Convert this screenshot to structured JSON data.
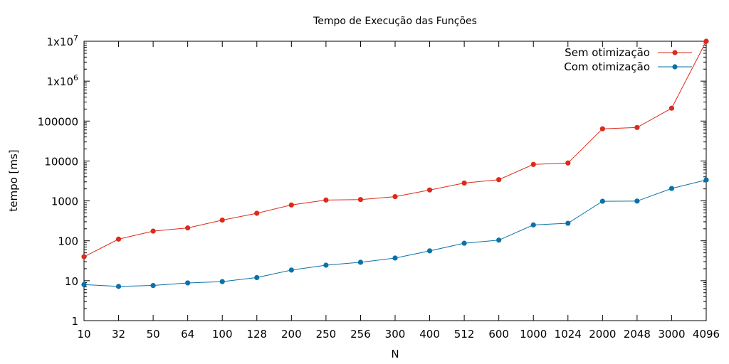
{
  "chart_data": {
    "type": "line",
    "title": "Tempo de Execução das Funções",
    "xlabel": "N",
    "ylabel": "tempo [ms]",
    "yscale": "log",
    "ylim": [
      1,
      10000000
    ],
    "categories": [
      "10",
      "32",
      "50",
      "64",
      "100",
      "128",
      "200",
      "250",
      "256",
      "300",
      "400",
      "512",
      "600",
      "1000",
      "1024",
      "2000",
      "2048",
      "3000",
      "4096"
    ],
    "y_ticks": [
      {
        "value": 1,
        "label": "1"
      },
      {
        "value": 10,
        "label": "10"
      },
      {
        "value": 100,
        "label": "100"
      },
      {
        "value": 1000,
        "label": "1000"
      },
      {
        "value": 10000,
        "label": "10000"
      },
      {
        "value": 100000,
        "label": "100000"
      },
      {
        "value": 1000000,
        "label": "1x10",
        "exp": "6"
      },
      {
        "value": 10000000,
        "label": "1x10",
        "exp": "7"
      }
    ],
    "legend_position": "top-right",
    "series": [
      {
        "name": "Sem otimização",
        "color": "#dd2a1b",
        "values": [
          40,
          110,
          175,
          210,
          330,
          490,
          790,
          1050,
          1080,
          1280,
          1880,
          2800,
          3400,
          8200,
          8900,
          64000,
          69000,
          210000,
          10000000
        ]
      },
      {
        "name": "Com otimização",
        "color": "#0a72a8",
        "values": [
          8,
          7.2,
          7.6,
          8.8,
          9.5,
          12,
          18.5,
          24.5,
          29,
          37,
          56,
          87,
          104,
          250,
          275,
          980,
          990,
          2050,
          3350
        ]
      }
    ]
  }
}
